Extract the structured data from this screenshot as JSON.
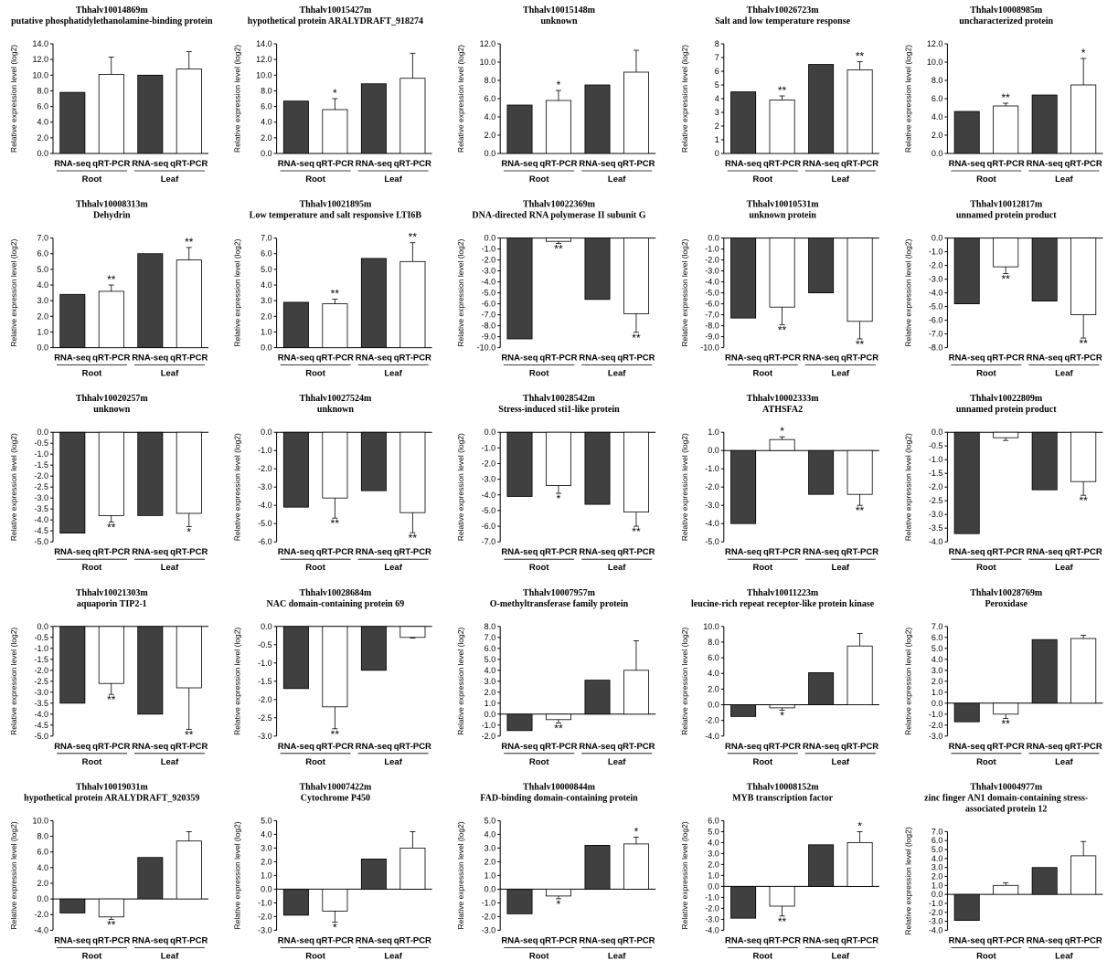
{
  "ylabel": "Relative expression level (log2)",
  "categories": [
    "RNA-seq",
    "qRT-PCR",
    "RNA-seq",
    "qRT-PCR"
  ],
  "groups": [
    "Root",
    "Leaf"
  ],
  "colors": {
    "rnaseq": "#404040",
    "qrtpcr": "#ffffff",
    "axis": "#000000"
  },
  "chart_data": [
    {
      "type": "bar",
      "title": [
        "Thhalv10014869m",
        "putative phosphatidylethanolamine-binding protein"
      ],
      "ylim": [
        0,
        14
      ],
      "step": 2,
      "decimals": 1,
      "values": [
        7.8,
        10.1,
        10.0,
        10.8
      ],
      "errors": [
        0,
        2.2,
        0,
        2.2
      ],
      "sig": [
        "",
        "",
        "",
        ""
      ]
    },
    {
      "type": "bar",
      "title": [
        "Thhalv10015427m",
        "hypothetical protein ARALYDRAFT_918274"
      ],
      "ylim": [
        0,
        14
      ],
      "step": 2,
      "decimals": 1,
      "values": [
        6.7,
        5.6,
        8.9,
        9.6
      ],
      "errors": [
        0,
        1.4,
        0,
        3.2
      ],
      "sig": [
        "",
        "*",
        "",
        ""
      ]
    },
    {
      "type": "bar",
      "title": [
        "Thhalv10015148m",
        "unknown"
      ],
      "ylim": [
        0,
        12
      ],
      "step": 2,
      "decimals": 1,
      "values": [
        5.3,
        5.8,
        7.5,
        8.9
      ],
      "errors": [
        0,
        1.1,
        0,
        2.4
      ],
      "sig": [
        "",
        "*",
        "",
        ""
      ]
    },
    {
      "type": "bar",
      "title": [
        "Thhalv10026723m",
        "Salt and low temperature response"
      ],
      "ylim": [
        0,
        8
      ],
      "step": 1,
      "decimals": 0,
      "values": [
        4.5,
        3.9,
        6.5,
        6.1
      ],
      "errors": [
        0,
        0.3,
        0,
        0.6
      ],
      "sig": [
        "",
        "**",
        "",
        "**"
      ]
    },
    {
      "type": "bar",
      "title": [
        "Thhalv10008985m",
        "uncharacterized protein"
      ],
      "ylim": [
        0,
        12
      ],
      "step": 2,
      "decimals": 1,
      "values": [
        4.6,
        5.2,
        6.4,
        7.5
      ],
      "errors": [
        0,
        0.3,
        0,
        2.9
      ],
      "sig": [
        "",
        "**",
        "",
        "*"
      ]
    },
    {
      "type": "bar",
      "title": [
        "Thhalv10008313m",
        "Dehydrin"
      ],
      "ylim": [
        0,
        7
      ],
      "step": 1,
      "decimals": 1,
      "values": [
        3.4,
        3.6,
        6.0,
        5.6
      ],
      "errors": [
        0,
        0.4,
        0,
        0.8
      ],
      "sig": [
        "",
        "**",
        "",
        "**"
      ]
    },
    {
      "type": "bar",
      "title": [
        "Thhalv10021895m",
        "Low temperature and salt responsive LTI6B"
      ],
      "ylim": [
        0,
        7
      ],
      "step": 1,
      "decimals": 1,
      "values": [
        2.9,
        2.8,
        5.7,
        5.5
      ],
      "errors": [
        0,
        0.3,
        0,
        1.2
      ],
      "sig": [
        "",
        "**",
        "",
        "**"
      ]
    },
    {
      "type": "bar",
      "title": [
        "Thhalv10022369m",
        "DNA-directed RNA polymerase II subunit G"
      ],
      "ylim": [
        -10,
        0
      ],
      "step": 1,
      "decimals": 1,
      "values": [
        -9.2,
        -0.3,
        -5.6,
        -6.9
      ],
      "errors": [
        0,
        0.2,
        0,
        1.7
      ],
      "sig": [
        "",
        "**",
        "",
        "**"
      ]
    },
    {
      "type": "bar",
      "title": [
        "Thhalv10010531m",
        "unknown protein"
      ],
      "ylim": [
        -10,
        0
      ],
      "step": 1,
      "decimals": 1,
      "values": [
        -7.3,
        -6.3,
        -5.0,
        -7.6
      ],
      "errors": [
        0,
        1.6,
        0,
        1.6
      ],
      "sig": [
        "",
        "**",
        "",
        "**"
      ]
    },
    {
      "type": "bar",
      "title": [
        "Thhalv10012817m",
        "unnamed protein product"
      ],
      "ylim": [
        -8,
        0
      ],
      "step": 1,
      "decimals": 1,
      "values": [
        -4.8,
        -2.1,
        -4.6,
        -5.6
      ],
      "errors": [
        0,
        0.5,
        0,
        1.7
      ],
      "sig": [
        "",
        "**",
        "",
        "**"
      ]
    },
    {
      "type": "bar",
      "title": [
        "Thhalv10020257m",
        "unknown"
      ],
      "ylim": [
        -5,
        0
      ],
      "step": 0.5,
      "decimals": 1,
      "values": [
        -4.6,
        -3.8,
        -3.8,
        -3.7
      ],
      "errors": [
        0,
        0.3,
        0,
        0.6
      ],
      "sig": [
        "",
        "**",
        "",
        "*"
      ]
    },
    {
      "type": "bar",
      "title": [
        "Thhalv10027524m",
        "unknown"
      ],
      "ylim": [
        -6,
        0
      ],
      "step": 1,
      "decimals": 1,
      "values": [
        -4.1,
        -3.6,
        -3.2,
        -4.4
      ],
      "errors": [
        0,
        1.1,
        0,
        1.1
      ],
      "sig": [
        "",
        "**",
        "",
        "**"
      ]
    },
    {
      "type": "bar",
      "title": [
        "Thhalv10028542m",
        "Stress-induced sti1-like protein"
      ],
      "ylim": [
        -7,
        0
      ],
      "step": 1,
      "decimals": 1,
      "values": [
        -4.1,
        -3.4,
        -4.6,
        -5.1
      ],
      "errors": [
        0,
        0.5,
        0,
        0.9
      ],
      "sig": [
        "",
        "*",
        "",
        "**"
      ]
    },
    {
      "type": "bar",
      "title": [
        "Thhalv10002333m",
        "ATHSFA2"
      ],
      "ylim": [
        -5,
        1
      ],
      "step": 1,
      "decimals": 1,
      "values": [
        -4.0,
        0.6,
        -2.4,
        -2.4
      ],
      "errors": [
        0,
        0.15,
        0,
        0.6
      ],
      "sig": [
        "",
        "*",
        "",
        "**"
      ]
    },
    {
      "type": "bar",
      "title": [
        "Thhalv10022809m",
        "unnamed protein product"
      ],
      "ylim": [
        -4,
        0
      ],
      "step": 0.5,
      "decimals": 1,
      "values": [
        -3.7,
        -0.2,
        -2.1,
        -1.8
      ],
      "errors": [
        0,
        0.1,
        0,
        0.5
      ],
      "sig": [
        "",
        "",
        "",
        "**"
      ]
    },
    {
      "type": "bar",
      "title": [
        "Thhalv10021303m",
        "aquaporin TIP2-1"
      ],
      "ylim": [
        -5,
        0
      ],
      "step": 0.5,
      "decimals": 1,
      "values": [
        -3.5,
        -2.6,
        -4.0,
        -2.8
      ],
      "errors": [
        0,
        0.5,
        0,
        1.9
      ],
      "sig": [
        "",
        "**",
        "",
        "**"
      ]
    },
    {
      "type": "bar",
      "title": [
        "Thhalv10028684m",
        "NAC domain-containing protein 69"
      ],
      "ylim": [
        -3,
        0
      ],
      "step": 0.5,
      "decimals": 1,
      "values": [
        -1.7,
        -2.2,
        -1.2,
        -0.3
      ],
      "errors": [
        0,
        0.6,
        0,
        0.02
      ],
      "sig": [
        "",
        "**",
        "",
        ""
      ]
    },
    {
      "type": "bar",
      "title": [
        "Thhalv10007957m",
        "O-methyltransferase family protein"
      ],
      "ylim": [
        -2,
        8
      ],
      "step": 1,
      "decimals": 1,
      "values": [
        -1.5,
        -0.5,
        3.1,
        4.0
      ],
      "errors": [
        0,
        0.3,
        0,
        2.7
      ],
      "sig": [
        "",
        "**",
        "",
        ""
      ]
    },
    {
      "type": "bar",
      "title": [
        "Thhalv10011223m",
        "leucine-rich repeat receptor-like protein kinase"
      ],
      "ylim": [
        -4,
        10
      ],
      "step": 2,
      "decimals": 1,
      "values": [
        -1.5,
        -0.4,
        4.1,
        7.5
      ],
      "errors": [
        0,
        0.3,
        0,
        1.6
      ],
      "sig": [
        "",
        "*",
        "",
        ""
      ]
    },
    {
      "type": "bar",
      "title": [
        "Thhalv10028769m",
        "Peroxidase"
      ],
      "ylim": [
        -3,
        7
      ],
      "step": 1,
      "decimals": 1,
      "values": [
        -1.7,
        -1.0,
        5.8,
        5.9
      ],
      "errors": [
        0,
        0.4,
        0,
        0.3
      ],
      "sig": [
        "",
        "**",
        "",
        ""
      ]
    },
    {
      "type": "bar",
      "title": [
        "Thhalv10019031m",
        "hypothetical protein ARALYDRAFT_920359"
      ],
      "ylim": [
        -4,
        10
      ],
      "step": 2,
      "decimals": 1,
      "values": [
        -1.8,
        -2.3,
        5.3,
        7.4
      ],
      "errors": [
        0,
        0.3,
        0,
        1.2
      ],
      "sig": [
        "",
        "**",
        "",
        ""
      ]
    },
    {
      "type": "bar",
      "title": [
        "Thhalv10007422m",
        "Cytochrome P450"
      ],
      "ylim": [
        -3,
        5
      ],
      "step": 1,
      "decimals": 1,
      "values": [
        -1.9,
        -1.6,
        2.2,
        3.0
      ],
      "errors": [
        0,
        0.8,
        0,
        1.2
      ],
      "sig": [
        "",
        "*",
        "",
        ""
      ]
    },
    {
      "type": "bar",
      "title": [
        "Thhalv10000844m",
        "FAD-binding domain-containing protein"
      ],
      "ylim": [
        -3,
        5
      ],
      "step": 1,
      "decimals": 1,
      "values": [
        -1.8,
        -0.5,
        3.2,
        3.3
      ],
      "errors": [
        0,
        0.2,
        0,
        0.5
      ],
      "sig": [
        "",
        "*",
        "",
        "*"
      ]
    },
    {
      "type": "bar",
      "title": [
        "Thhalv10008152m",
        "MYB transcription factor"
      ],
      "ylim": [
        -4,
        6
      ],
      "step": 1,
      "decimals": 1,
      "values": [
        -2.9,
        -1.8,
        3.8,
        4.0
      ],
      "errors": [
        0,
        0.9,
        0,
        1.0
      ],
      "sig": [
        "",
        "**",
        "",
        "*"
      ]
    },
    {
      "type": "bar",
      "title": [
        "Thhalv10004977m",
        "zinc finger AN1 domain-containing stress-",
        "associated protein 12"
      ],
      "ylim": [
        -4,
        7
      ],
      "step": 1,
      "decimals": 1,
      "values": [
        -2.9,
        1.0,
        3.0,
        4.3
      ],
      "errors": [
        0,
        0.3,
        0,
        1.6
      ],
      "sig": [
        "",
        "",
        "",
        ""
      ]
    }
  ]
}
